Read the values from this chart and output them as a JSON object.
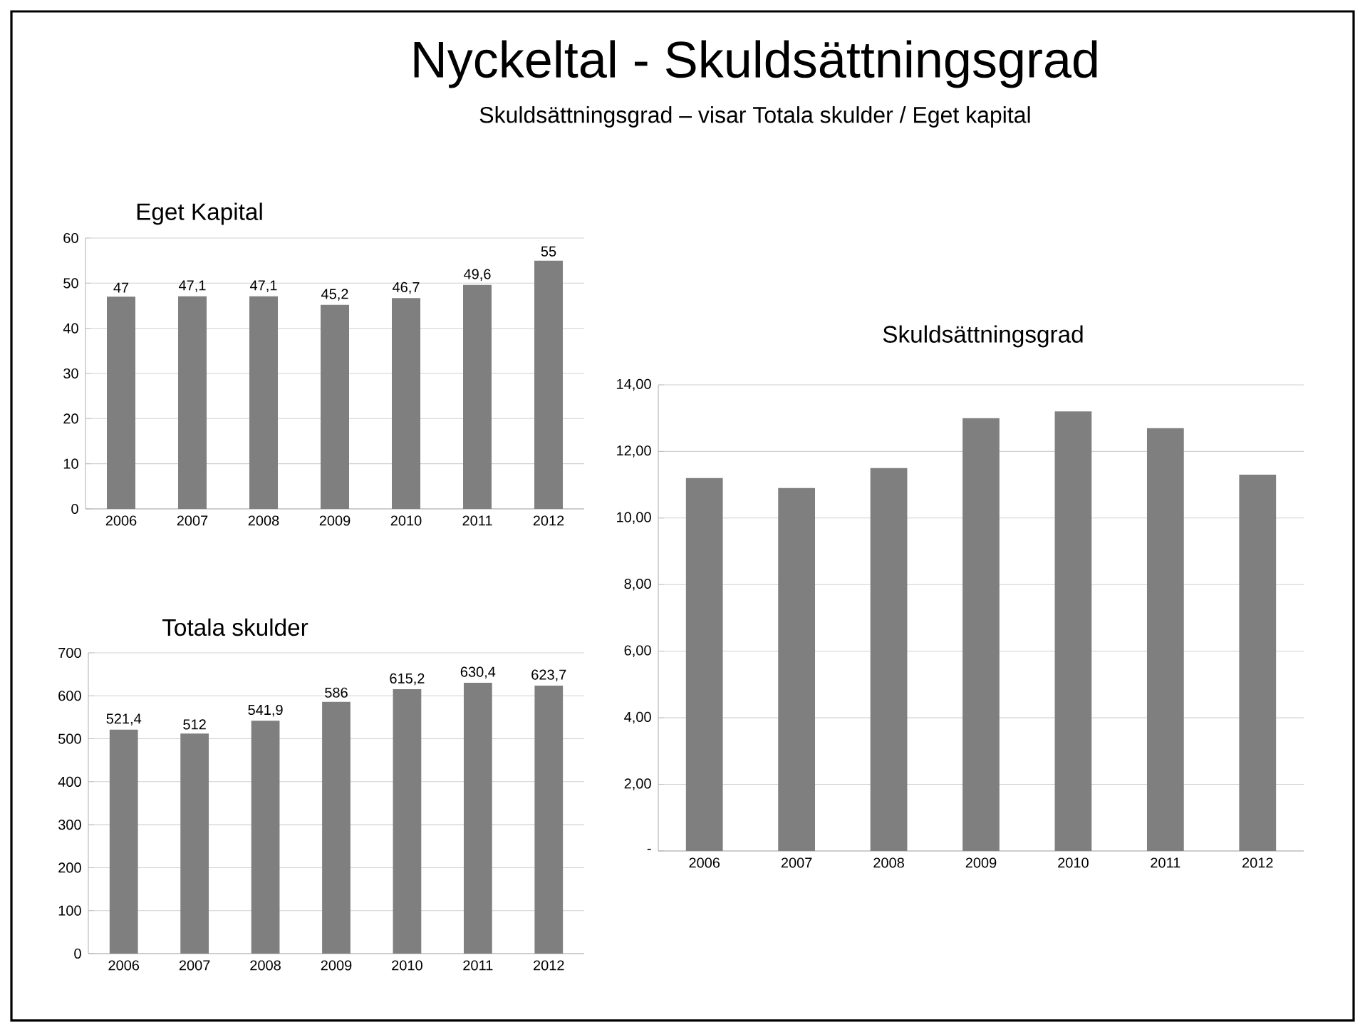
{
  "chart_data": [
    {
      "type": "other",
      "title": "Nyckeltal - Skuldsättningsgrad",
      "subtitle": "Skuldsättningsgrad – visar Totala skulder / Eget kapital"
    },
    {
      "type": "bar",
      "title": "Eget Kapital",
      "categories": [
        "2006",
        "2007",
        "2008",
        "2009",
        "2010",
        "2011",
        "2012"
      ],
      "values": [
        47,
        47.1,
        47.1,
        45.2,
        46.7,
        49.6,
        55
      ],
      "value_labels": [
        "47",
        "47,1",
        "47,1",
        "45,2",
        "46,7",
        "49,6",
        "55"
      ],
      "color": "#7f7f7f",
      "ylim": [
        0,
        60
      ],
      "yticks": [
        0,
        10,
        20,
        30,
        40,
        50,
        60
      ],
      "grid": "y"
    },
    {
      "type": "bar",
      "title": "Totala skulder",
      "categories": [
        "2006",
        "2007",
        "2008",
        "2009",
        "2010",
        "2011",
        "2012"
      ],
      "values": [
        521.4,
        512,
        541.9,
        586,
        615.2,
        630.4,
        623.7
      ],
      "value_labels": [
        "521,4",
        "512",
        "541,9",
        "586",
        "615,2",
        "630,4",
        "623,7"
      ],
      "color": "#7f7f7f",
      "ylim": [
        0,
        700
      ],
      "yticks": [
        0,
        100,
        200,
        300,
        400,
        500,
        600,
        700
      ],
      "grid": "y"
    },
    {
      "type": "bar",
      "title": "Skuldsättningsgrad",
      "categories": [
        "2006",
        "2007",
        "2008",
        "2009",
        "2010",
        "2011",
        "2012"
      ],
      "values": [
        11.2,
        10.9,
        11.5,
        13.0,
        13.2,
        12.7,
        11.3
      ],
      "color": "#7f7f7f",
      "ylim": [
        0,
        14
      ],
      "yticks": [
        {
          "value": 0,
          "label": "-"
        },
        {
          "value": 2,
          "label": "2,00"
        },
        {
          "value": 4,
          "label": "4,00"
        },
        {
          "value": 6,
          "label": "6,00"
        },
        {
          "value": 8,
          "label": "8,00"
        },
        {
          "value": 10,
          "label": "10,00"
        },
        {
          "value": 12,
          "label": "12,00"
        },
        {
          "value": 14,
          "label": "14,00"
        }
      ],
      "grid": "y"
    }
  ]
}
